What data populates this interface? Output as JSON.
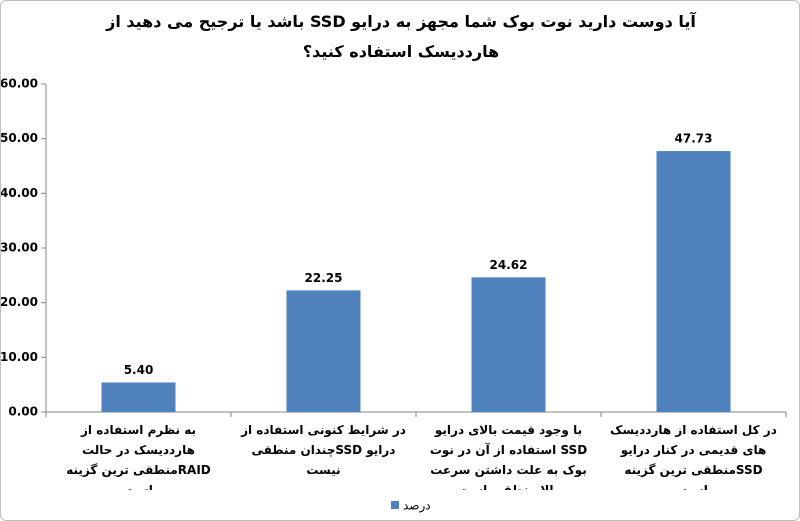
{
  "chart_data": {
    "type": "bar",
    "title": "آیا دوست دارید نوت بوک شما مجهز به درایو SSD باشد یا ترجیح می دهید از هارددیسک استفاده کنید؟",
    "categories": [
      "به نظرم استفاده از هارددیسک در حالت RAIDمنطقی ترین گزینه است",
      "در شرایط کنونی استفاده از درایو SSDچندان منطقی نیست",
      "با وجود قیمت بالای درایو SSD استفاده از آن در نوت بوک به علت داشتن سرعت بالا منطقی است",
      "در کل استفاده از هارددیسک های قدیمی در کنار درایو SSDمنطقی ترین گزینه است"
    ],
    "series": [
      {
        "name": "درصد",
        "color": "#4f81bd",
        "values": [
          5.4,
          22.25,
          24.62,
          47.73
        ],
        "value_labels": [
          "5.40",
          "22.25",
          "24.62",
          "47.73"
        ]
      }
    ],
    "ylim": [
      0,
      60
    ],
    "yticks": [
      {
        "value": 0,
        "label": "0.00"
      },
      {
        "value": 10,
        "label": "10.00"
      },
      {
        "value": 20,
        "label": "20.00"
      },
      {
        "value": 30,
        "label": "30.00"
      },
      {
        "value": 40,
        "label": "40.00"
      },
      {
        "value": 50,
        "label": "50.00"
      },
      {
        "value": 60,
        "label": "60.00"
      }
    ],
    "grid": false,
    "legend": "bottom"
  }
}
